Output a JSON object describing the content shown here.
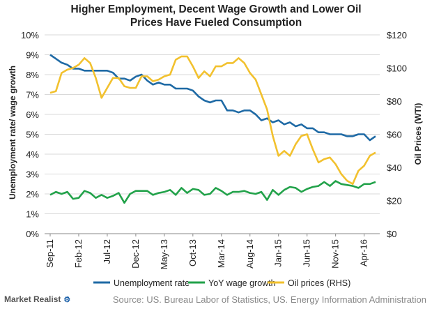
{
  "chart_data": {
    "type": "line",
    "title_line1": "Higher Employment, Decent Wage Growth and Lower Oil",
    "title_line2": "Prices Have Fueled Consumption",
    "ylabel_left": "Unemployment rate/ wage growth",
    "ylabel_right": "Oil Prices (WTI)",
    "left_ticks": [
      "0%",
      "1%",
      "2%",
      "3%",
      "4%",
      "5%",
      "6%",
      "7%",
      "8%",
      "9%",
      "10%"
    ],
    "right_ticks": [
      "$0",
      "$20",
      "$40",
      "$60",
      "$80",
      "$100",
      "$120"
    ],
    "x_ticks": [
      "Sep-11",
      "Feb-12",
      "Jul-12",
      "Dec-12",
      "May-13",
      "Oct-13",
      "Mar-14",
      "Aug-14",
      "Jan-15",
      "Jun-15",
      "Nov-15",
      "Apr-16"
    ],
    "ylim_left": [
      0,
      10
    ],
    "ylim_right": [
      0,
      120
    ],
    "x_range_months": [
      "Sep-11",
      "Jul-16"
    ],
    "grid": true,
    "legend_position": "bottom",
    "series": [
      {
        "name": "Unemployment rate",
        "axis": "left",
        "color": "#1f6aa5",
        "values": [
          9.0,
          8.8,
          8.6,
          8.5,
          8.3,
          8.3,
          8.2,
          8.2,
          8.2,
          8.2,
          8.2,
          8.1,
          7.8,
          7.8,
          7.7,
          7.9,
          8.0,
          7.7,
          7.5,
          7.6,
          7.5,
          7.5,
          7.3,
          7.3,
          7.3,
          7.2,
          6.9,
          6.7,
          6.6,
          6.7,
          6.7,
          6.2,
          6.2,
          6.1,
          6.2,
          6.2,
          6.0,
          5.7,
          5.8,
          5.6,
          5.7,
          5.5,
          5.6,
          5.4,
          5.5,
          5.3,
          5.3,
          5.1,
          5.1,
          5.0,
          5.0,
          5.0,
          4.9,
          4.9,
          5.0,
          5.0,
          4.7,
          4.9
        ]
      },
      {
        "name": "YoY wage growth",
        "axis": "left",
        "color": "#22a24a",
        "values": [
          1.95,
          2.1,
          2.0,
          2.1,
          1.75,
          1.8,
          2.15,
          2.05,
          1.8,
          1.95,
          1.8,
          1.9,
          2.05,
          1.55,
          2.0,
          2.15,
          2.15,
          2.15,
          1.95,
          2.05,
          2.1,
          2.2,
          1.95,
          2.3,
          2.05,
          2.25,
          2.2,
          1.95,
          2.0,
          2.3,
          2.15,
          1.95,
          2.1,
          2.1,
          2.15,
          2.05,
          2.0,
          2.1,
          1.7,
          2.2,
          1.95,
          2.2,
          2.35,
          2.3,
          2.1,
          2.25,
          2.35,
          2.4,
          2.6,
          2.4,
          2.65,
          2.5,
          2.45,
          2.4,
          2.3,
          2.5,
          2.5,
          2.6
        ]
      },
      {
        "name": "Oil prices (RHS)",
        "axis": "right",
        "color": "#f2c12e",
        "values": [
          85,
          86,
          97,
          99,
          100,
          102,
          106,
          103,
          94,
          82,
          88,
          94,
          94,
          89,
          88,
          88,
          95,
          95,
          92,
          93,
          95,
          96,
          105,
          107,
          107,
          101,
          94,
          98,
          95,
          101,
          101,
          103,
          103,
          106,
          103,
          97,
          93,
          84,
          75,
          59,
          47,
          50,
          47,
          54,
          59,
          60,
          51,
          43,
          45,
          46,
          42,
          36,
          32,
          30,
          38,
          41,
          47,
          49
        ]
      }
    ]
  },
  "footer": {
    "brand": "Market Realist",
    "source": "Source: US. Bureau Labor of Statistics, US. Energy Information Administration"
  }
}
